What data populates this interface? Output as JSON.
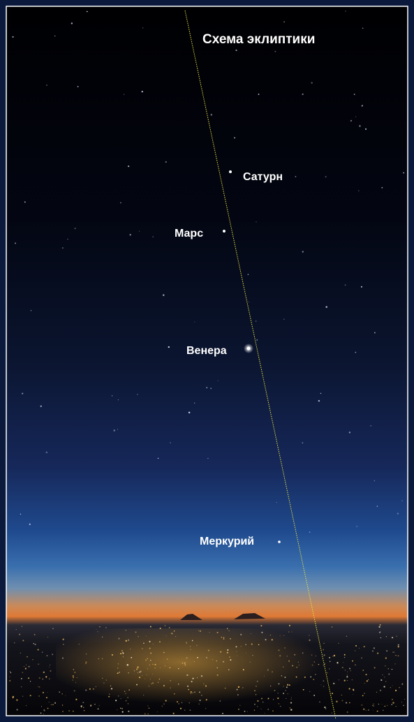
{
  "title": "Схема эклиптики",
  "planets": [
    "Сатурн",
    "Марс",
    "Венера",
    "Меркурий"
  ]
}
